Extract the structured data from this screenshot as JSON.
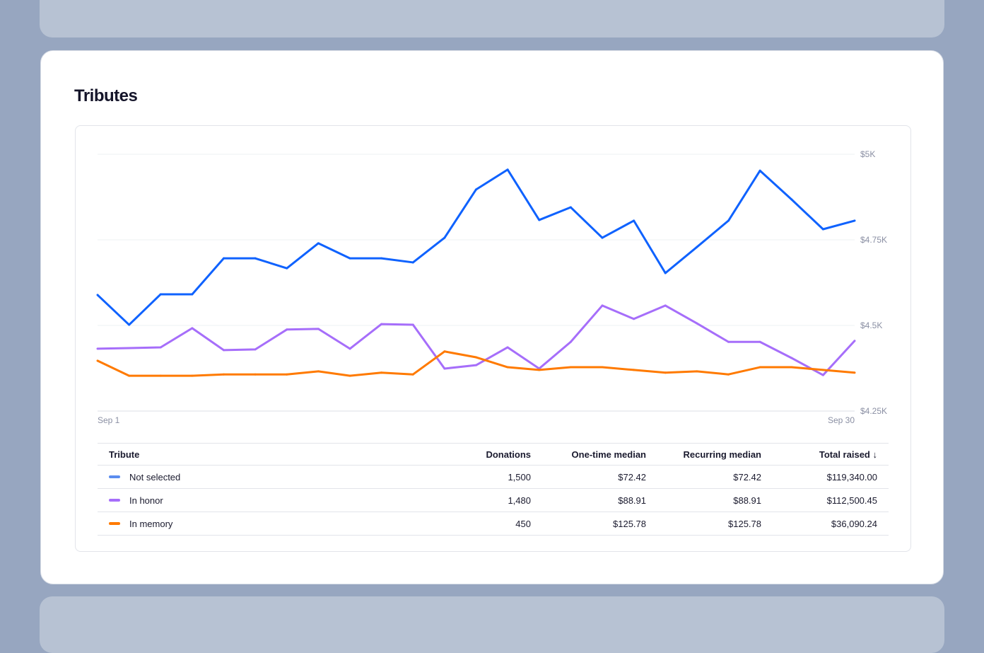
{
  "card": {
    "title": "Tributes"
  },
  "chart_data": {
    "type": "line",
    "title": "Tributes",
    "x_tick_labels": [
      "Sep 1",
      "Sep 30"
    ],
    "x": [
      1,
      2,
      3,
      4,
      5,
      6,
      7,
      8,
      9,
      10,
      11,
      12,
      13,
      14,
      15,
      16,
      17,
      18,
      19,
      20,
      21,
      22,
      23,
      24,
      25
    ],
    "ylim": [
      4250,
      5000
    ],
    "y_ticks": [
      4250,
      4500,
      4750,
      5000
    ],
    "y_tick_labels": [
      "$4.25K",
      "$4.5K",
      "$4.75K",
      "$5K"
    ],
    "grid": true,
    "series": [
      {
        "name": "Not selected",
        "color": "#0f62fe",
        "values": [
          4589,
          4502,
          4591,
          4591,
          4696,
          4696,
          4667,
          4740,
          4696,
          4696,
          4684,
          4756,
          4897,
          4955,
          4808,
          4845,
          4756,
          4806,
          4653,
          4729,
          4806,
          4952,
          4868,
          4781,
          4806
        ]
      },
      {
        "name": "In honor",
        "color": "#a66efa",
        "values": [
          4432,
          4434,
          4436,
          4492,
          4428,
          4430,
          4488,
          4490,
          4432,
          4504,
          4502,
          4374,
          4384,
          4436,
          4374,
          4452,
          4558,
          4519,
          4558,
          4506,
          4452,
          4452,
          4405,
          4355,
          4455
        ]
      },
      {
        "name": "In memory",
        "color": "#ff7a00",
        "values": [
          4397,
          4353,
          4353,
          4353,
          4357,
          4357,
          4357,
          4366,
          4353,
          4362,
          4357,
          4424,
          4407,
          4378,
          4370,
          4378,
          4378,
          4370,
          4362,
          4366,
          4357,
          4378,
          4378,
          4370,
          4362
        ]
      }
    ]
  },
  "table": {
    "headers": [
      "Tribute",
      "Donations",
      "One-time median",
      "Recurring median",
      "Total raised"
    ],
    "sort_icon": "arrow-down-icon",
    "sort_glyph": "↓",
    "rows": [
      {
        "tribute": "Not selected",
        "color": "#5b8def",
        "donations": "1,500",
        "one_time": "$72.42",
        "recurring": "$72.42",
        "total": "$119,340.00"
      },
      {
        "tribute": "In honor",
        "color": "#a66efa",
        "donations": "1,480",
        "one_time": "$88.91",
        "recurring": "$88.91",
        "total": "$112,500.45"
      },
      {
        "tribute": "In memory",
        "color": "#ff7a00",
        "donations": "450",
        "one_time": "$125.78",
        "recurring": "$125.78",
        "total": "$36,090.24"
      }
    ]
  }
}
